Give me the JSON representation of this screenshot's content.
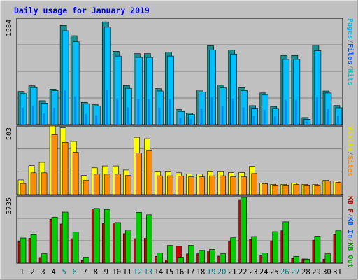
{
  "title": "Daily usage for January 2019",
  "colors": {
    "background": "#c0c0c0",
    "plot_bg": "#c0c0c0",
    "title": "#0000ff",
    "pages": "#00bfff",
    "files": "#1060e0",
    "hits": "#00ffff",
    "hits_shade": "#1a8f8f",
    "visits": "#ffff00",
    "sites": "#ff8c00",
    "kb_in": "#00cc00",
    "kb_out": "#cc0000",
    "weekend": "#008080"
  },
  "chart_data": [
    {
      "type": "bar",
      "name": "hits-files-pages",
      "max_label": "1584",
      "ylim": [
        0,
        1584
      ],
      "legend": [
        "Pages",
        "/",
        "Files",
        "/",
        "Hits"
      ],
      "categories": [
        "1",
        "2",
        "3",
        "4",
        "5",
        "6",
        "7",
        "8",
        "9",
        "10",
        "11",
        "12",
        "13",
        "14",
        "15",
        "16",
        "17",
        "18",
        "19",
        "20",
        "21",
        "22",
        "23",
        "24",
        "25",
        "26",
        "27",
        "28",
        "29",
        "30",
        "31"
      ],
      "weekend_days": [
        "5",
        "6",
        "12",
        "13",
        "19",
        "20",
        "26",
        "27"
      ],
      "series": [
        {
          "name": "Hits",
          "values": [
            493,
            577,
            355,
            527,
            1477,
            1323,
            331,
            295,
            1530,
            1090,
            580,
            1056,
            1056,
            535,
            1079,
            223,
            172,
            515,
            1174,
            585,
            1110,
            550,
            282,
            471,
            270,
            1030,
            1030,
            105,
            1180,
            500,
            284
          ]
        },
        {
          "name": "Files",
          "values": [
            250,
            275,
            165,
            250,
            510,
            420,
            160,
            140,
            520,
            390,
            255,
            380,
            380,
            250,
            385,
            105,
            80,
            240,
            410,
            270,
            390,
            255,
            130,
            220,
            125,
            370,
            370,
            50,
            410,
            235,
            130
          ]
        },
        {
          "name": "Pages",
          "values": [
            460,
            550,
            320,
            505,
            1396,
            1232,
            310,
            276,
            1450,
            1020,
            540,
            1000,
            1000,
            500,
            1020,
            195,
            150,
            485,
            1110,
            545,
            1050,
            505,
            245,
            440,
            240,
            970,
            970,
            80,
            1100,
            470,
            250
          ]
        }
      ]
    },
    {
      "type": "bar",
      "name": "visits-sites",
      "max_label": "503",
      "ylim": [
        0,
        503
      ],
      "legend": [
        "Visits",
        "/",
        "Sites"
      ],
      "categories": [
        "1",
        "2",
        "3",
        "4",
        "5",
        "6",
        "7",
        "8",
        "9",
        "10",
        "11",
        "12",
        "13",
        "14",
        "15",
        "16",
        "17",
        "18",
        "19",
        "20",
        "21",
        "22",
        "23",
        "24",
        "25",
        "26",
        "27",
        "28",
        "29",
        "30",
        "31"
      ],
      "weekend_days": [
        "5",
        "6",
        "12",
        "13",
        "19",
        "20",
        "26",
        "27"
      ],
      "series": [
        {
          "name": "Visits",
          "values": [
            108,
            212,
            236,
            503,
            490,
            390,
            140,
            196,
            210,
            210,
            180,
            420,
            410,
            172,
            172,
            160,
            152,
            150,
            172,
            172,
            162,
            162,
            208,
            85,
            75,
            75,
            85,
            75,
            75,
            105,
            100
          ]
        },
        {
          "name": "Sites",
          "values": [
            82,
            160,
            160,
            440,
            383,
            311,
            105,
            150,
            150,
            150,
            140,
            305,
            325,
            138,
            138,
            135,
            130,
            130,
            138,
            138,
            130,
            130,
            155,
            80,
            70,
            70,
            75,
            70,
            70,
            100,
            90
          ]
        }
      ]
    },
    {
      "type": "bar",
      "name": "kbytes",
      "max_label": "3735",
      "ylim": [
        0,
        3735
      ],
      "legend": [
        "KB F",
        "/",
        "KB In",
        "/",
        "KB Out"
      ],
      "categories": [
        "1",
        "2",
        "3",
        "4",
        "5",
        "6",
        "7",
        "8",
        "9",
        "10",
        "11",
        "12",
        "13",
        "14",
        "15",
        "16",
        "17",
        "18",
        "19",
        "20",
        "21",
        "22",
        "23",
        "24",
        "25",
        "26",
        "27",
        "28",
        "29",
        "30",
        "31"
      ],
      "weekend_days": [
        "5",
        "6",
        "12",
        "13",
        "19",
        "20",
        "26",
        "27"
      ],
      "series": [
        {
          "name": "KB Out",
          "values": [
            1200,
            1380,
            315,
            2440,
            2180,
            1360,
            140,
            3020,
            2200,
            2240,
            1640,
            1360,
            1380,
            380,
            180,
            940,
            515,
            520,
            680,
            390,
            1220,
            3540,
            1320,
            425,
            1240,
            1800,
            265,
            235,
            1280,
            225,
            1620
          ]
        },
        {
          "name": "KB In",
          "values": [
            1400,
            1620,
            520,
            2560,
            2840,
            1720,
            330,
            3040,
            2990,
            2260,
            1840,
            2830,
            2690,
            560,
            990,
            330,
            990,
            710,
            760,
            520,
            1410,
            3660,
            1480,
            560,
            1750,
            2300,
            380,
            220,
            1500,
            520,
            1800
          ]
        }
      ]
    }
  ]
}
